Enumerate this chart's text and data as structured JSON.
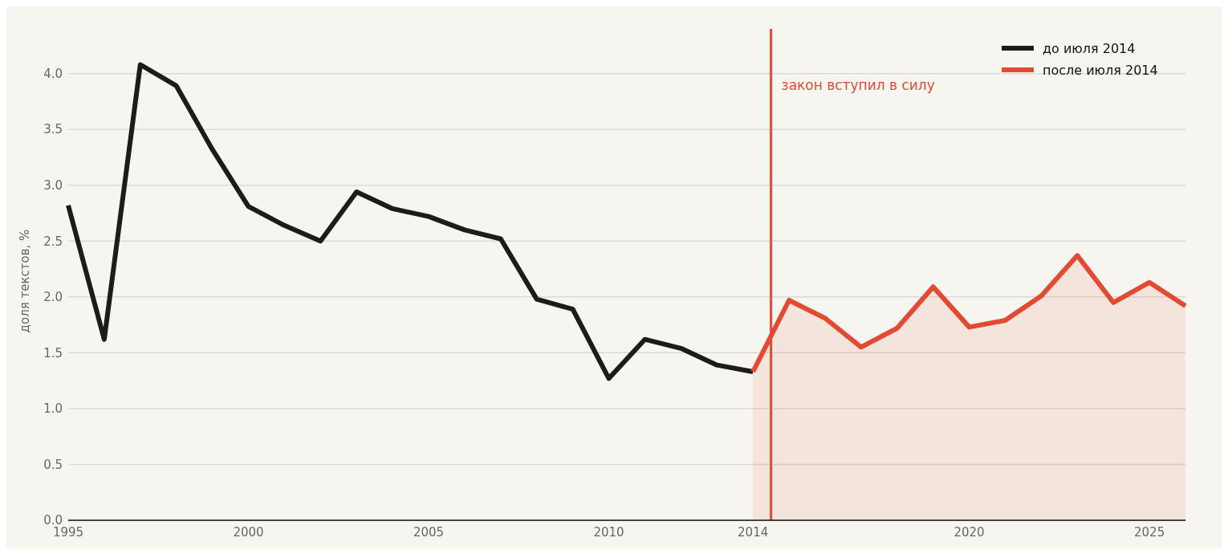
{
  "chart_data": {
    "type": "line",
    "ylabel": "доля текстов, %",
    "xlim": [
      1995,
      2026
    ],
    "ylim": [
      0,
      4.4
    ],
    "xticks": [
      1995,
      2000,
      2005,
      2010,
      2014,
      2020,
      2025
    ],
    "yticks": [
      {
        "value": 0,
        "label": "0.0"
      },
      {
        "value": 0.5,
        "label": "0.5"
      },
      {
        "value": 1,
        "label": "1.0"
      },
      {
        "value": 1.5,
        "label": "1.5"
      },
      {
        "value": 2,
        "label": "2.0"
      },
      {
        "value": 2.5,
        "label": "2.5"
      },
      {
        "value": 3,
        "label": "3.0"
      },
      {
        "value": 3.5,
        "label": "3.5"
      },
      {
        "value": 4,
        "label": "4.0"
      }
    ],
    "grid": "y",
    "legend": "top right",
    "marker": "none",
    "line_style": "solid",
    "series": [
      {
        "name": "до июля 2014",
        "color": "#1e1c1a",
        "x": [
          1995,
          1996,
          1997,
          1998,
          1999,
          2000,
          2001,
          2002,
          2003,
          2004,
          2005,
          2006,
          2007,
          2008,
          2009,
          2010,
          2011,
          2012,
          2013,
          2014
        ],
        "values": [
          2.82,
          1.62,
          4.08,
          3.89,
          3.32,
          2.81,
          2.64,
          2.5,
          2.94,
          2.79,
          2.72,
          2.6,
          2.52,
          1.98,
          1.89,
          1.27,
          1.62,
          1.54,
          1.39,
          1.33
        ]
      },
      {
        "name": "после июля 2014",
        "color": "#e34a33",
        "type": "area",
        "x": [
          2014,
          2015,
          2016,
          2017,
          2018,
          2019,
          2020,
          2021,
          2022,
          2023,
          2024,
          2025,
          2026
        ],
        "values": [
          1.33,
          1.97,
          1.81,
          1.55,
          1.72,
          2.09,
          1.73,
          1.79,
          2.01,
          2.37,
          1.95,
          2.13,
          1.92
        ]
      }
    ],
    "ref_lines": [
      {
        "axis": "x",
        "value": 2014.5,
        "label": "закон вступил в силу",
        "color": "#e34a33",
        "line_style": "solid"
      }
    ]
  }
}
